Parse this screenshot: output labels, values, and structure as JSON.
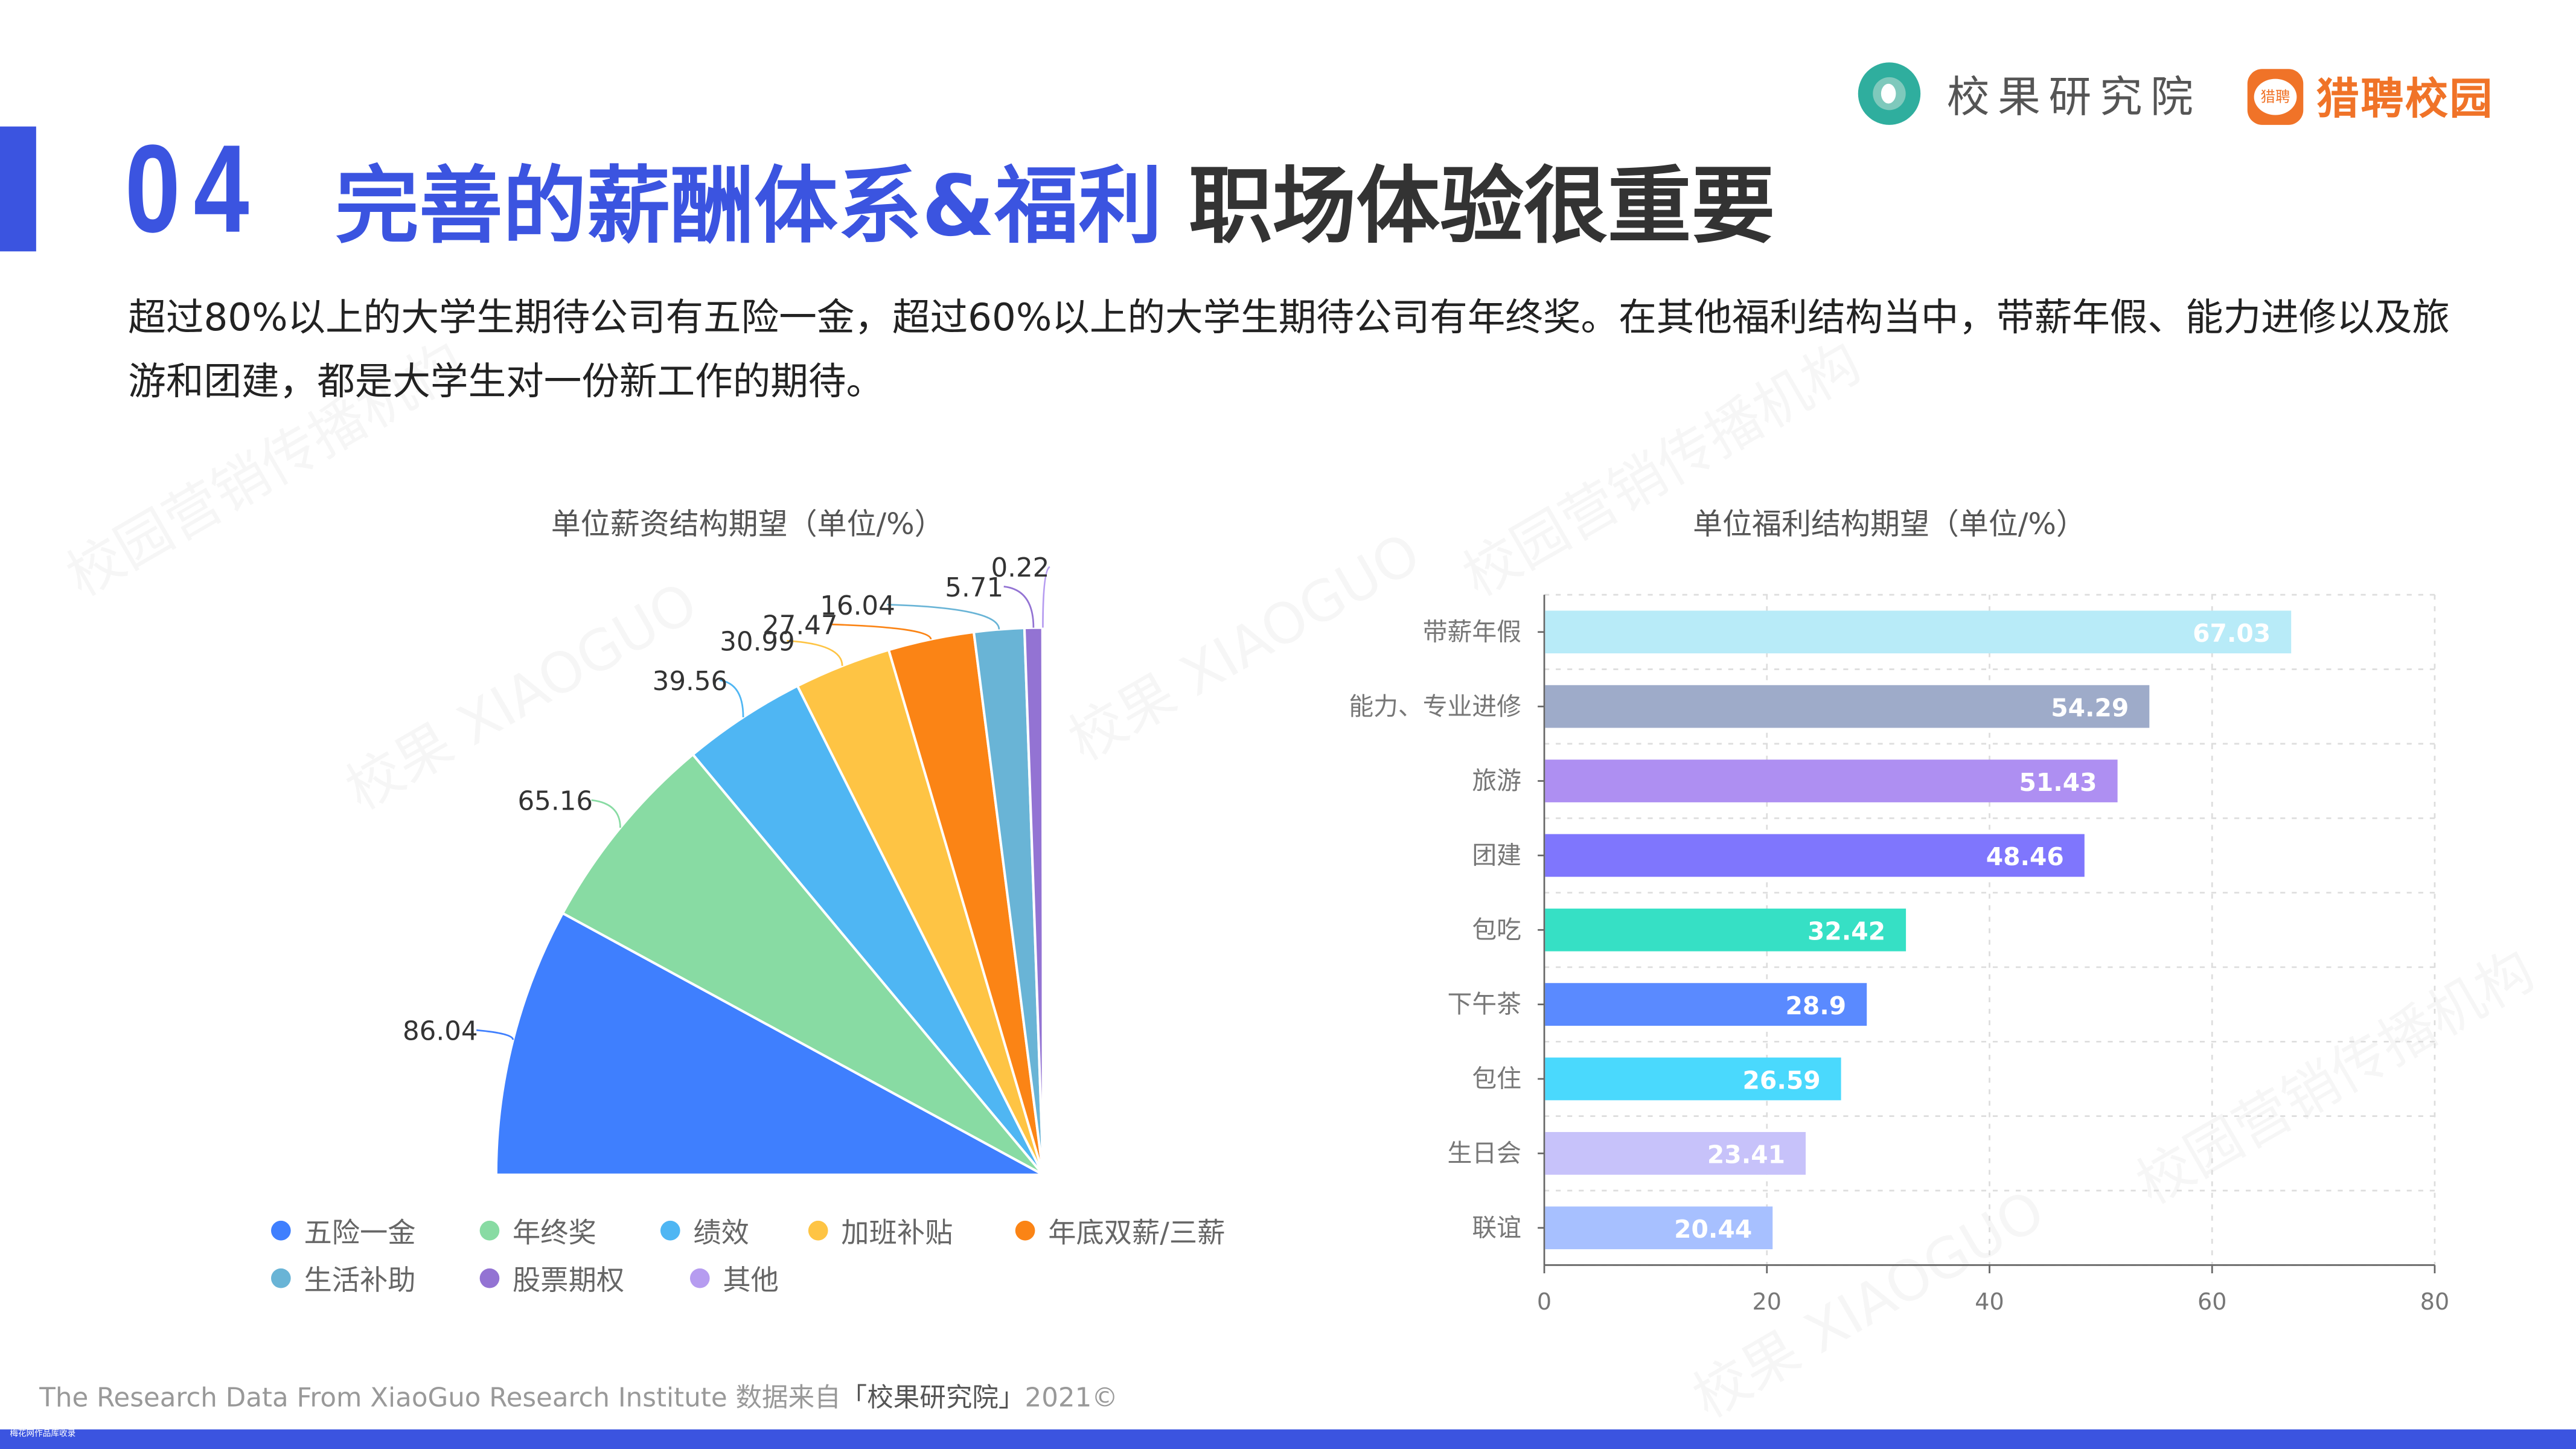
{
  "header": {
    "section_number": "04",
    "title_highlight": "完善的薪酬体系&福利",
    "title_rest": "职场体验很重要",
    "logo_xiaoguo": "校果研究院",
    "logo_liepin_icon": "猎聘",
    "logo_liepin": "猎聘校园"
  },
  "summary": "超过80%以上的大学生期待公司有五险一金，超过60%以上的大学生期待公司有年终奖。在其他福利结构当中，带薪年假、能力进修以及旅游和团建，都是大学生对一份新工作的期待。",
  "watermarks": [
    "校园营销传播机构",
    "校果 XIAOGUO",
    "校园营销传播机构",
    "校果 XIAOGUO",
    "校园营销传播机构",
    "校果 XIAOGUO"
  ],
  "chart_data": [
    {
      "type": "pie",
      "title": "单位薪资结构期望（单位/%）",
      "categories": [
        "五险一金",
        "年终奖",
        "绩效",
        "加班补贴",
        "年底双薪/三薪",
        "生活补助",
        "股票期权",
        "其他"
      ],
      "values": [
        86.04,
        65.16,
        39.56,
        30.99,
        27.47,
        16.04,
        5.71,
        0.22
      ],
      "colors": [
        "#3f7ffe",
        "#88dba3",
        "#4fb6f3",
        "#fec444",
        "#fb8415",
        "#69b4d6",
        "#9373d3",
        "#b69cf0"
      ],
      "legend": "bottom-left",
      "span_degrees": 90
    },
    {
      "type": "bar",
      "orientation": "horizontal",
      "title": "单位福利结构期望（单位/%）",
      "categories": [
        "带薪年假",
        "能力、专业进修",
        "旅游",
        "团建",
        "包吃",
        "下午茶",
        "包住",
        "生日会",
        "联谊"
      ],
      "values": [
        67.03,
        54.29,
        51.43,
        48.46,
        32.42,
        28.9,
        26.59,
        23.41,
        20.44
      ],
      "value_labels": [
        "67.03",
        "54.29",
        "51.43",
        "48.46",
        "32.42",
        "28.9",
        "26.59",
        "23.41",
        "20.44"
      ],
      "colors": [
        "#b8ebf8",
        "#9eabc9",
        "#ae8ff2",
        "#7f76fd",
        "#36e0c5",
        "#5a8aff",
        "#4ad9fd",
        "#c7c2fa",
        "#a7c0ff"
      ],
      "xlim": [
        0,
        80
      ],
      "xticks": [
        "0",
        "20",
        "40",
        "60",
        "80"
      ],
      "grid": true
    }
  ],
  "footer": {
    "text": "The Research Data From XiaoGuo Research Institute 数据来自",
    "source": "「校果研究院」",
    "year": "2021©",
    "bottom_bar_text": "梅花网作品库收录"
  }
}
